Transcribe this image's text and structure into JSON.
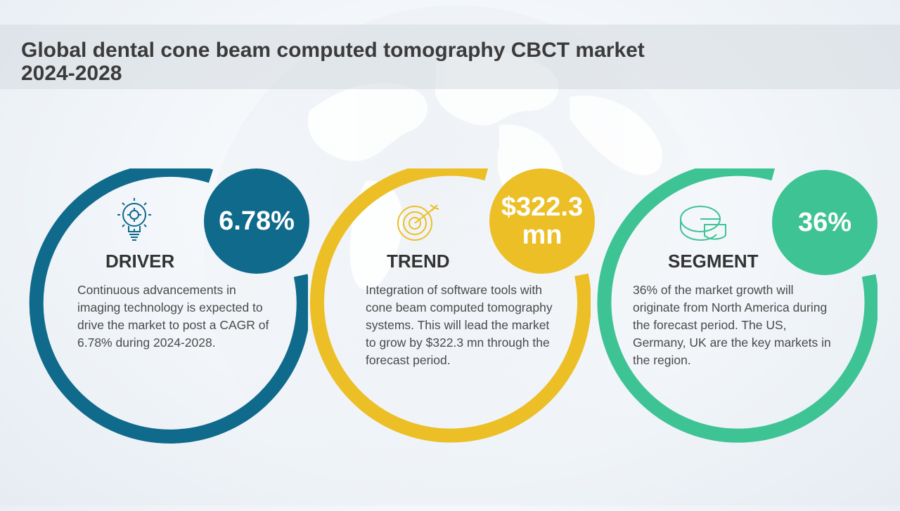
{
  "title": "Global dental cone beam computed tomography \u0001CBCT\u0001 market\n2024-2028",
  "colors": {
    "driver": "#0f6a8b",
    "trend": "#ecbf26",
    "segment": "#3ec394",
    "title_text": "#3b3b3b",
    "body_text": "#4a4a4a"
  },
  "cards": [
    {
      "key": "driver",
      "label": "DRIVER",
      "value": "6.78%",
      "icon": "lightbulb-gear-icon",
      "description": "Continuous advancements in imaging technology is expected to drive the market to post a CAGR of 6.78% during 2024-2028."
    },
    {
      "key": "trend",
      "label": "TREND",
      "value": "$322.3 mn",
      "icon": "target-arrow-icon",
      "description": "Integration of software tools with cone beam computed tomography systems. This will lead the market to grow by $322.3 mn through the forecast period."
    },
    {
      "key": "segment",
      "label": "SEGMENT",
      "value": "36%",
      "icon": "pie-chart-icon",
      "description": "36% of the market growth will originate from North America during the forecast period. The US, Germany, UK are the key markets in the region."
    }
  ]
}
